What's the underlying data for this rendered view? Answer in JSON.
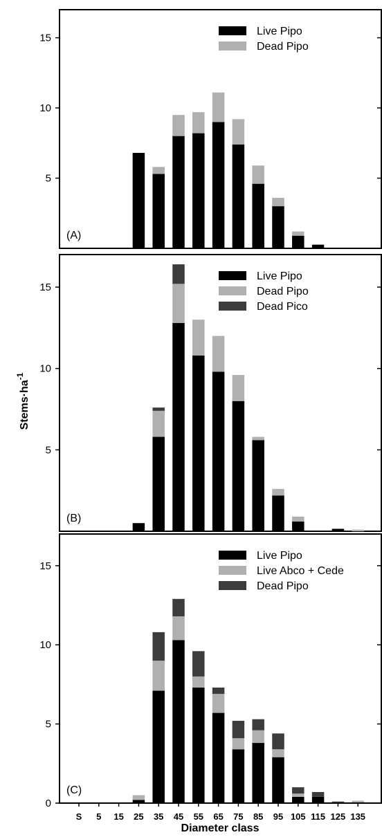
{
  "chart_data": [
    {
      "type": "bar",
      "stacked": true,
      "panel_label": "(A)",
      "categories": [
        "S",
        "5",
        "15",
        "25",
        "35",
        "45",
        "55",
        "65",
        "75",
        "85",
        "95",
        "105",
        "115",
        "125",
        "135"
      ],
      "ylim": [
        0,
        17
      ],
      "yticks": [
        5,
        10,
        15
      ],
      "ytick_labels": [
        "5",
        "10",
        "15"
      ],
      "series": [
        {
          "name": "Live Pipo",
          "color": "#000000",
          "values": [
            0,
            0,
            0,
            6.8,
            5.3,
            8.0,
            8.2,
            9.0,
            7.4,
            4.6,
            3.0,
            0.9,
            0.25,
            0,
            0
          ]
        },
        {
          "name": "Dead Pipo",
          "color": "#b0b0b0",
          "values": [
            0,
            0,
            0,
            0,
            0.5,
            1.5,
            1.5,
            2.1,
            1.8,
            1.3,
            0.6,
            0.3,
            0.05,
            0,
            0
          ]
        }
      ],
      "legend_position": "top-right"
    },
    {
      "type": "bar",
      "stacked": true,
      "panel_label": "(B)",
      "categories": [
        "S",
        "5",
        "15",
        "25",
        "35",
        "45",
        "55",
        "65",
        "75",
        "85",
        "95",
        "105",
        "115",
        "125",
        "135"
      ],
      "ylim": [
        0,
        17
      ],
      "yticks": [
        5,
        10,
        15
      ],
      "ytick_labels": [
        "5",
        "10",
        "15"
      ],
      "series": [
        {
          "name": "Live Pipo",
          "color": "#000000",
          "values": [
            0,
            0,
            0,
            0.5,
            5.8,
            12.8,
            10.8,
            9.8,
            8.0,
            5.6,
            2.2,
            0.6,
            0,
            0.15,
            0
          ]
        },
        {
          "name": "Dead Pipo",
          "color": "#b0b0b0",
          "values": [
            0,
            0,
            0,
            0,
            1.6,
            2.4,
            2.2,
            2.2,
            1.6,
            0.2,
            0.4,
            0.3,
            0,
            0,
            0.1
          ]
        },
        {
          "name": "Dead Pico",
          "color": "#3c3c3c",
          "values": [
            0,
            0,
            0,
            0,
            0.2,
            1.2,
            0,
            0,
            0,
            0,
            0,
            0,
            0,
            0,
            0
          ]
        }
      ],
      "legend_position": "top-right"
    },
    {
      "type": "bar",
      "stacked": true,
      "panel_label": "(C)",
      "categories": [
        "S",
        "5",
        "15",
        "25",
        "35",
        "45",
        "55",
        "65",
        "75",
        "85",
        "95",
        "105",
        "115",
        "125",
        "135"
      ],
      "ylim": [
        0,
        17
      ],
      "yticks": [
        0,
        5,
        10,
        15
      ],
      "ytick_labels": [
        "0",
        "5",
        "10",
        "15"
      ],
      "xlabel": "Diameter class",
      "series": [
        {
          "name": "Live Pipo",
          "color": "#000000",
          "values": [
            0,
            0,
            0,
            0.2,
            7.1,
            10.3,
            7.3,
            5.7,
            3.4,
            3.8,
            2.9,
            0.4,
            0.4,
            0.05,
            0
          ]
        },
        {
          "name": "Live Abco + Cede",
          "color": "#b0b0b0",
          "values": [
            0,
            0,
            0,
            0.3,
            1.9,
            1.5,
            0.7,
            1.2,
            0.7,
            0.8,
            0.5,
            0.2,
            0,
            0,
            0.15
          ]
        },
        {
          "name": "Dead Pipo",
          "color": "#3c3c3c",
          "values": [
            0,
            0,
            0,
            0,
            1.8,
            1.1,
            1.6,
            0.4,
            1.1,
            0.7,
            1.0,
            0.4,
            0.3,
            0.05,
            0
          ]
        }
      ],
      "legend_position": "top-right"
    }
  ],
  "ylabel": "Stems·ha",
  "ylabel_superscript": "-1"
}
